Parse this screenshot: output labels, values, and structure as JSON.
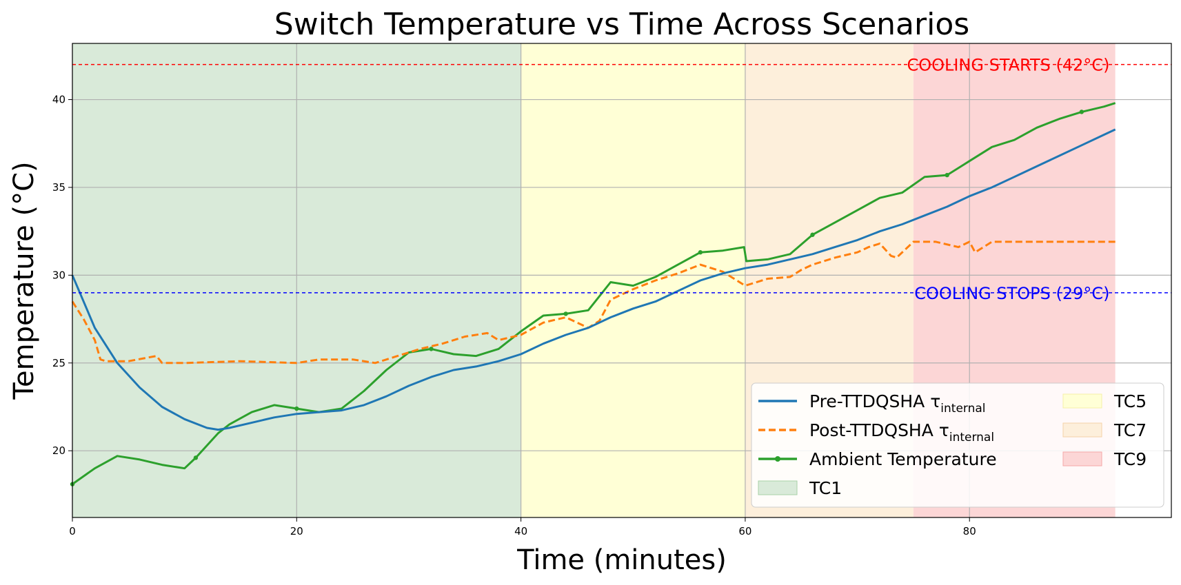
{
  "chart_data": {
    "type": "line",
    "title": "Switch Temperature vs Time Across Scenarios",
    "xlabel": "Time (minutes)",
    "ylabel": "Temperature (°C)",
    "xlim": [
      0,
      98
    ],
    "ylim": [
      16.2,
      43.2
    ],
    "x_ticks": [
      0,
      20,
      40,
      60,
      80
    ],
    "y_ticks": [
      20,
      25,
      30,
      35,
      40
    ],
    "grid": true,
    "legend_position": "lower-right",
    "regions": [
      {
        "name": "TC1",
        "x0": 0,
        "x1": 40,
        "color": "#d9ead9"
      },
      {
        "name": "TC5",
        "x0": 40,
        "x1": 60,
        "color": "#ffffd6"
      },
      {
        "name": "TC7",
        "x0": 60,
        "x1": 75,
        "color": "#fdefdb"
      },
      {
        "name": "TC9",
        "x0": 75,
        "x1": 93,
        "color": "#fcd6d6"
      }
    ],
    "thresholds": [
      {
        "label": "COOLING STARTS (42°C)",
        "y": 42,
        "color": "#ff0000"
      },
      {
        "label": "COOLING STOPS (29°C)",
        "y": 29,
        "color": "#0000ff"
      }
    ],
    "series": [
      {
        "name": "Pre-TTDQSHA τ",
        "name_sub": "internal",
        "color": "#1f77b4",
        "style": "solid",
        "x": [
          0,
          2,
          4,
          6,
          8,
          10,
          12,
          13,
          14,
          16,
          18,
          20,
          22,
          24,
          26,
          28,
          30,
          32,
          34,
          36,
          38,
          40,
          42,
          44,
          46,
          48,
          50,
          52,
          54,
          56,
          58,
          60,
          62,
          64,
          66,
          68,
          70,
          72,
          74,
          76,
          78,
          80,
          82,
          84,
          86,
          88,
          90,
          92,
          93
        ],
        "y": [
          30.0,
          27.0,
          25.0,
          23.6,
          22.5,
          21.8,
          21.3,
          21.2,
          21.3,
          21.6,
          21.9,
          22.1,
          22.2,
          22.3,
          22.6,
          23.1,
          23.7,
          24.2,
          24.6,
          24.8,
          25.1,
          25.5,
          26.1,
          26.6,
          27.0,
          27.6,
          28.1,
          28.5,
          29.1,
          29.7,
          30.1,
          30.4,
          30.6,
          30.9,
          31.2,
          31.6,
          32.0,
          32.5,
          32.9,
          33.4,
          33.9,
          34.5,
          35.0,
          35.6,
          36.2,
          36.8,
          37.4,
          38.0,
          38.3
        ]
      },
      {
        "name": "Post-TTDQSHA τ",
        "name_sub": "internal",
        "color": "#ff7f0e",
        "style": "dashed",
        "x": [
          0,
          1,
          2,
          2.5,
          3,
          5,
          7.5,
          8,
          10,
          15,
          20,
          22,
          25,
          27,
          29,
          31,
          33,
          35,
          37,
          38,
          40,
          42,
          44,
          46,
          47,
          48,
          50,
          52,
          54,
          56,
          58,
          60,
          62,
          64,
          65,
          66,
          68,
          70,
          71,
          72,
          73,
          73.5,
          75,
          77,
          79,
          80,
          80.5,
          82,
          85,
          88,
          90,
          93
        ],
        "y": [
          28.5,
          27.5,
          26.3,
          25.2,
          25.1,
          25.1,
          25.4,
          25.0,
          25.0,
          25.1,
          25.0,
          25.2,
          25.2,
          25.0,
          25.4,
          25.8,
          26.1,
          26.5,
          26.7,
          26.3,
          26.6,
          27.3,
          27.6,
          27.0,
          27.4,
          28.6,
          29.2,
          29.7,
          30.1,
          30.6,
          30.2,
          29.4,
          29.8,
          29.9,
          30.3,
          30.6,
          31.0,
          31.3,
          31.6,
          31.8,
          31.1,
          31.0,
          31.9,
          31.9,
          31.6,
          31.9,
          31.3,
          31.9,
          31.9,
          31.9,
          31.9,
          31.9
        ]
      },
      {
        "name": "Ambient Temperature",
        "color": "#2ca02c",
        "style": "solid-marker",
        "x": [
          0,
          2,
          4,
          6,
          8,
          10,
          11,
          12,
          13,
          14,
          16,
          18,
          20,
          22,
          24,
          26,
          28,
          30,
          32,
          34,
          36,
          38,
          40,
          42,
          44,
          46,
          48,
          50,
          52,
          54,
          56,
          58,
          59.9,
          60.1,
          62,
          64,
          66,
          68,
          70,
          72,
          74,
          76,
          78,
          80,
          82,
          84,
          86,
          88,
          90,
          92,
          93
        ],
        "y": [
          18.1,
          19.0,
          19.7,
          19.5,
          19.2,
          19.0,
          19.6,
          20.3,
          21.0,
          21.5,
          22.2,
          22.6,
          22.4,
          22.2,
          22.4,
          23.4,
          24.6,
          25.6,
          25.8,
          25.5,
          25.4,
          25.8,
          26.8,
          27.7,
          27.8,
          28.0,
          29.6,
          29.4,
          29.9,
          30.6,
          31.3,
          31.4,
          31.6,
          30.8,
          30.9,
          31.2,
          32.3,
          33.0,
          33.7,
          34.4,
          34.7,
          35.6,
          35.7,
          36.5,
          37.3,
          37.7,
          38.4,
          38.9,
          39.3,
          39.6,
          39.8
        ]
      }
    ]
  }
}
